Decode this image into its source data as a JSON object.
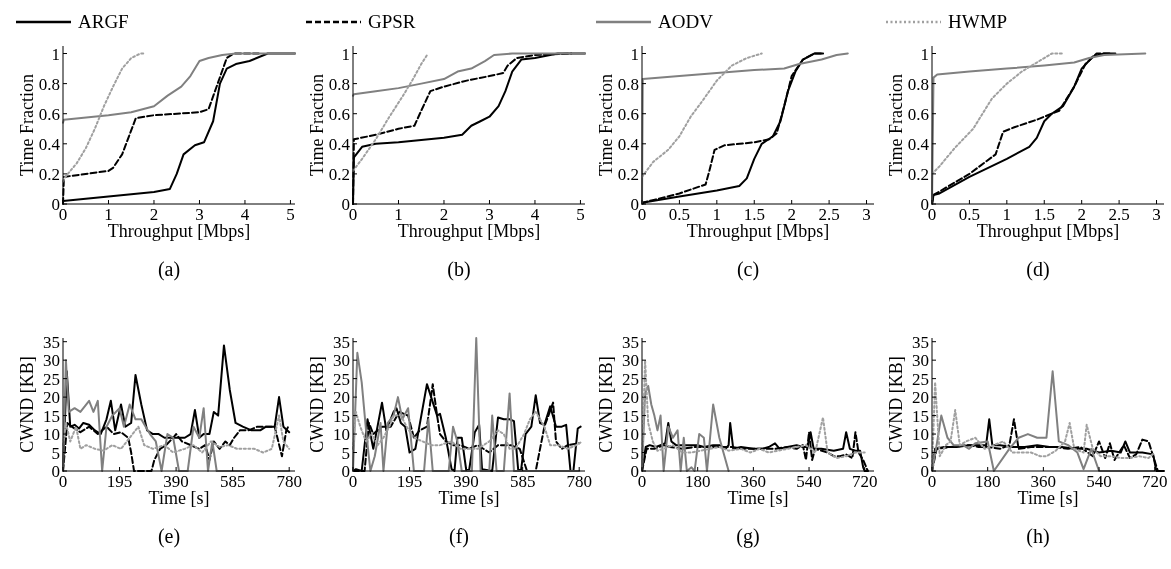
{
  "chart_data": [
    {
      "type": "line",
      "xlabel": "Throughput [Mbps]",
      "ylabel": "Time Fraction",
      "annotations": [
        "(a)"
      ],
      "legend": "top",
      "xlim": [
        0,
        5.1
      ],
      "xticks": [
        0,
        1,
        2,
        3,
        4,
        5
      ],
      "ylim": [
        0,
        1.05
      ],
      "yticks": [
        0,
        0.2,
        0.4,
        0.6,
        0.8,
        1
      ],
      "series": [
        {
          "name": "ARGF",
          "color": "#000000",
          "line_style": "solid",
          "x": [
            0,
            1,
            2,
            2.35,
            2.5,
            2.65,
            2.9,
            3.1,
            3.3,
            3.45,
            3.6,
            3.8,
            4.1,
            4.5,
            5.1
          ],
          "values": [
            0.02,
            0.05,
            0.08,
            0.1,
            0.2,
            0.33,
            0.39,
            0.41,
            0.55,
            0.8,
            0.9,
            0.93,
            0.95,
            1,
            1
          ]
        },
        {
          "name": "GPSR",
          "color": "#000000",
          "line_style": "dashed",
          "x": [
            0,
            0.02,
            1,
            1.1,
            1.3,
            1.45,
            1.6,
            2,
            3,
            3.2,
            3.4,
            3.6,
            3.75,
            4.3
          ],
          "values": [
            0,
            0.18,
            0.22,
            0.24,
            0.33,
            0.45,
            0.57,
            0.59,
            0.61,
            0.63,
            0.8,
            0.97,
            1,
            1
          ]
        },
        {
          "name": "AODV",
          "color": "#808080",
          "line_style": "solid",
          "x": [
            0,
            0.02,
            1,
            1.5,
            2,
            2.3,
            2.6,
            2.8,
            3,
            3.2,
            3.5,
            3.8,
            5.1
          ],
          "values": [
            0.54,
            0.56,
            0.59,
            0.61,
            0.65,
            0.72,
            0.78,
            0.85,
            0.95,
            0.97,
            0.99,
            1,
            1
          ]
        },
        {
          "name": "HWMP",
          "color": "#a0a0a0",
          "line_style": "dotted",
          "x": [
            0,
            0.05,
            0.3,
            0.5,
            0.7,
            0.9,
            1.1,
            1.3,
            1.5,
            1.7,
            1.8
          ],
          "values": [
            0.15,
            0.18,
            0.27,
            0.37,
            0.5,
            0.65,
            0.78,
            0.9,
            0.97,
            1,
            1
          ]
        }
      ]
    },
    {
      "type": "line",
      "xlabel": "Throughput [Mbps]",
      "ylabel": "Time Fraction",
      "annotations": [
        "(b)"
      ],
      "xlim": [
        0,
        5.1
      ],
      "xticks": [
        0,
        1,
        2,
        3,
        4,
        5
      ],
      "ylim": [
        0,
        1.05
      ],
      "yticks": [
        0,
        0.2,
        0.4,
        0.6,
        0.8,
        1
      ],
      "series": [
        {
          "color": "#000000",
          "line_style": "solid",
          "x": [
            0,
            0.02,
            0.2,
            0.5,
            1,
            2,
            2.4,
            2.6,
            2.8,
            3,
            3.2,
            3.35,
            3.5,
            3.7,
            4,
            4.5,
            5.1
          ],
          "values": [
            0,
            0.31,
            0.38,
            0.4,
            0.41,
            0.44,
            0.46,
            0.52,
            0.55,
            0.58,
            0.65,
            0.75,
            0.88,
            0.96,
            0.97,
            1,
            1
          ]
        },
        {
          "color": "#000000",
          "line_style": "dashed",
          "x": [
            0,
            0.02,
            0.5,
            1,
            1.35,
            1.5,
            1.7,
            2,
            2.5,
            3,
            3.3,
            3.4,
            3.6,
            4,
            4.8
          ],
          "values": [
            0,
            0.43,
            0.46,
            0.5,
            0.52,
            0.62,
            0.75,
            0.78,
            0.82,
            0.85,
            0.87,
            0.92,
            0.97,
            0.99,
            1
          ]
        },
        {
          "color": "#808080",
          "line_style": "solid",
          "x": [
            0,
            0.02,
            0.5,
            1,
            1.5,
            2,
            2.3,
            2.6,
            2.9,
            3.1,
            3.5,
            5.1
          ],
          "values": [
            0.72,
            0.73,
            0.75,
            0.77,
            0.8,
            0.83,
            0.88,
            0.9,
            0.95,
            0.99,
            1,
            1
          ]
        },
        {
          "color": "#a0a0a0",
          "line_style": "dotted",
          "x": [
            0,
            0.2,
            0.5,
            0.8,
            1.1,
            1.3,
            1.5,
            1.65
          ],
          "values": [
            0.22,
            0.3,
            0.43,
            0.58,
            0.72,
            0.82,
            0.93,
            1
          ]
        }
      ]
    },
    {
      "type": "line",
      "xlabel": "Throughput [Mbps]",
      "ylabel": "Time Fraction",
      "annotations": [
        "(c)"
      ],
      "xlim": [
        0,
        3.1
      ],
      "xticks": [
        0,
        0.5,
        1,
        1.5,
        2,
        2.5,
        3
      ],
      "ylim": [
        0,
        1.05
      ],
      "yticks": [
        0,
        0.2,
        0.4,
        0.6,
        0.8,
        1
      ],
      "series": [
        {
          "color": "#000000",
          "line_style": "solid",
          "x": [
            0,
            0.02,
            0.5,
            1,
            1.3,
            1.4,
            1.5,
            1.6,
            1.75,
            1.85,
            1.95,
            2.05,
            2.15,
            2.3,
            2.42
          ],
          "values": [
            0,
            0.01,
            0.05,
            0.09,
            0.12,
            0.17,
            0.3,
            0.4,
            0.45,
            0.55,
            0.75,
            0.88,
            0.96,
            1,
            1
          ]
        },
        {
          "color": "#000000",
          "line_style": "dashed",
          "x": [
            0,
            0.02,
            0.5,
            0.85,
            0.9,
            0.97,
            1.1,
            1.5,
            1.7,
            1.8,
            1.9,
            2,
            2.15,
            2.3,
            2.4
          ],
          "values": [
            0,
            0.01,
            0.07,
            0.13,
            0.22,
            0.36,
            0.39,
            0.41,
            0.43,
            0.47,
            0.65,
            0.85,
            0.96,
            1,
            1
          ]
        },
        {
          "color": "#808080",
          "line_style": "solid",
          "x": [
            0,
            0.01,
            0.5,
            1,
            1.5,
            1.9,
            2.1,
            2.4,
            2.6,
            2.75
          ],
          "values": [
            0,
            0.83,
            0.85,
            0.87,
            0.89,
            0.9,
            0.93,
            0.96,
            0.99,
            1
          ]
        },
        {
          "color": "#a0a0a0",
          "line_style": "dotted",
          "x": [
            0,
            0.15,
            0.35,
            0.5,
            0.65,
            0.8,
            1,
            1.2,
            1.4,
            1.6
          ],
          "values": [
            0.18,
            0.28,
            0.36,
            0.45,
            0.58,
            0.68,
            0.82,
            0.92,
            0.97,
            1
          ]
        }
      ]
    },
    {
      "type": "line",
      "xlabel": "Throughput [Mbps]",
      "ylabel": "Time Fraction",
      "annotations": [
        "(d)"
      ],
      "xlim": [
        0,
        3.1
      ],
      "xticks": [
        0,
        0.5,
        1,
        1.5,
        2,
        2.5,
        3
      ],
      "ylim": [
        0,
        1.05
      ],
      "yticks": [
        0,
        0.2,
        0.4,
        0.6,
        0.8,
        1
      ],
      "series": [
        {
          "color": "#000000",
          "line_style": "solid",
          "x": [
            0,
            0.02,
            0.1,
            0.5,
            1,
            1.3,
            1.4,
            1.5,
            1.6,
            1.75,
            1.9,
            2,
            2.15,
            2.3,
            2.45
          ],
          "values": [
            0,
            0.06,
            0.07,
            0.18,
            0.3,
            0.38,
            0.44,
            0.55,
            0.6,
            0.65,
            0.78,
            0.9,
            0.98,
            1,
            1
          ]
        },
        {
          "color": "#000000",
          "line_style": "dashed",
          "x": [
            0,
            0.02,
            0.5,
            0.85,
            0.95,
            1.1,
            1.4,
            1.7,
            1.9,
            2.05,
            2.2,
            2.4
          ],
          "values": [
            0,
            0.06,
            0.2,
            0.33,
            0.48,
            0.51,
            0.56,
            0.62,
            0.78,
            0.93,
            1,
            1
          ]
        },
        {
          "color": "#808080",
          "line_style": "solid",
          "x": [
            0,
            0.02,
            0.07,
            0.5,
            1,
            1.5,
            1.9,
            2.1,
            2.3,
            2.85
          ],
          "values": [
            0,
            0.84,
            0.86,
            0.88,
            0.9,
            0.92,
            0.94,
            0.97,
            0.99,
            1
          ]
        },
        {
          "color": "#a0a0a0",
          "line_style": "dotted",
          "x": [
            0,
            0.1,
            0.3,
            0.55,
            0.8,
            1,
            1.2,
            1.5,
            1.6,
            1.75
          ],
          "values": [
            0.2,
            0.25,
            0.37,
            0.5,
            0.7,
            0.8,
            0.88,
            0.97,
            1,
            1
          ]
        }
      ]
    },
    {
      "type": "line",
      "xlabel": "Time [s]",
      "ylabel": "CWND [KB]",
      "annotations": [
        "(e)"
      ],
      "xlim": [
        0,
        800
      ],
      "xticks": [
        0,
        195,
        390,
        585,
        780
      ],
      "ylim": [
        0,
        36
      ],
      "yticks": [
        0,
        5,
        10,
        15,
        20,
        25,
        30,
        35
      ],
      "series": [
        {
          "color": "#000000",
          "line_style": "solid",
          "x": [
            0,
            13,
            25,
            40,
            55,
            70,
            90,
            110,
            130,
            150,
            165,
            180,
            200,
            215,
            235,
            250,
            270,
            290,
            310,
            330,
            350,
            390,
            420,
            440,
            455,
            470,
            485,
            505,
            520,
            535,
            555,
            575,
            595,
            620,
            650,
            680,
            700,
            730,
            745,
            760,
            780
          ],
          "values": [
            0,
            27,
            12,
            12.5,
            11.5,
            13,
            12.5,
            11,
            10,
            14,
            19,
            11,
            18,
            12,
            13,
            26,
            18,
            11,
            10,
            10,
            9,
            9,
            9,
            10,
            16.5,
            9,
            10,
            10,
            16,
            15,
            34,
            22,
            13,
            12,
            11,
            11,
            12,
            12,
            20,
            12,
            10.5
          ]
        },
        {
          "color": "#000000",
          "line_style": "dashed",
          "x": [
            0,
            15,
            30,
            60,
            90,
            120,
            150,
            175,
            200,
            225,
            235,
            245,
            290,
            305,
            315,
            335,
            355,
            380,
            390,
            410,
            440,
            470,
            490,
            505,
            520,
            540,
            560,
            575,
            590,
            610,
            640,
            670,
            700,
            730,
            755,
            770,
            780
          ],
          "values": [
            0,
            13,
            12,
            10.5,
            12,
            10,
            12,
            10,
            10.5,
            9,
            5,
            0,
            0,
            0,
            3,
            6,
            7,
            9,
            10,
            8,
            7,
            6,
            7,
            3,
            8,
            6,
            8,
            7,
            9,
            11,
            11,
            12,
            12,
            12,
            4,
            11,
            12.5
          ]
        },
        {
          "color": "#808080",
          "line_style": "solid",
          "x": [
            0,
            10,
            20,
            40,
            60,
            90,
            105,
            120,
            135,
            150,
            170,
            195,
            210,
            230,
            250,
            270,
            285,
            300,
            320,
            340,
            360,
            380,
            400,
            430,
            450,
            470,
            485,
            500,
            515,
            530,
            560,
            780
          ],
          "values": [
            0,
            30,
            16,
            17,
            16,
            19,
            16,
            19,
            0,
            12,
            15,
            17,
            12,
            18,
            14,
            14,
            12,
            10,
            8,
            0,
            10,
            9,
            0,
            0,
            12,
            9,
            17,
            0,
            8,
            0,
            0,
            0
          ]
        },
        {
          "color": "#a0a0a0",
          "line_style": "dotted",
          "x": [
            0,
            10,
            25,
            45,
            60,
            80,
            110,
            140,
            170,
            200,
            230,
            260,
            280,
            310,
            350,
            380,
            420,
            450,
            480,
            510,
            540,
            570,
            600,
            630,
            660,
            690,
            720,
            745,
            760,
            780
          ],
          "values": [
            7,
            13,
            8,
            12,
            6,
            7,
            6,
            5.5,
            7,
            6,
            9,
            12,
            7,
            6,
            7,
            5,
            6,
            7,
            5,
            8,
            6.5,
            7,
            6,
            6,
            6,
            5,
            6,
            15,
            8,
            6
          ]
        }
      ]
    },
    {
      "type": "line",
      "xlabel": "Time [s]",
      "ylabel": "CWND [KB]",
      "annotations": [
        "(f)"
      ],
      "xlim": [
        0,
        800
      ],
      "xticks": [
        0,
        195,
        390,
        585,
        780
      ],
      "ylim": [
        0,
        36
      ],
      "yticks": [
        0,
        5,
        10,
        15,
        20,
        25,
        30,
        35
      ],
      "series": [
        {
          "color": "#000000",
          "line_style": "solid",
          "x": [
            0,
            10,
            30,
            50,
            70,
            100,
            115,
            140,
            150,
            165,
            180,
            195,
            215,
            255,
            290,
            300,
            320,
            340,
            350,
            360,
            375,
            390,
            400,
            420,
            435,
            445,
            480,
            500,
            520,
            540,
            555,
            570,
            580,
            595,
            615,
            630,
            645,
            660,
            680,
            700,
            720,
            735,
            750,
            760,
            775,
            785
          ],
          "values": [
            0,
            0.5,
            0,
            14,
            6,
            18.5,
            11,
            16,
            17,
            13,
            12,
            5,
            6,
            23.5,
            15,
            15.5,
            9,
            0.5,
            0,
            9,
            9,
            0.5,
            0,
            10.5,
            12.5,
            0.5,
            0,
            14.5,
            14,
            14,
            13.5,
            0,
            0.5,
            10,
            12,
            20.5,
            13,
            12.5,
            17.5,
            12,
            12,
            12.5,
            0,
            0,
            11.5,
            12
          ]
        },
        {
          "color": "#000000",
          "line_style": "dashed",
          "x": [
            0,
            40,
            55,
            70,
            100,
            130,
            160,
            190,
            210,
            230,
            255,
            275,
            290,
            300,
            320,
            345,
            370,
            400,
            430,
            470,
            500,
            520,
            545,
            575,
            600,
            630,
            660,
            690,
            700,
            720,
            740,
            780
          ],
          "values": [
            0,
            0,
            13,
            10,
            12,
            12,
            16,
            15,
            9,
            11,
            12,
            23.5,
            15,
            10,
            8,
            7,
            7,
            6,
            7,
            5,
            7,
            7,
            7,
            6,
            0,
            0,
            12,
            18.5,
            8,
            6,
            7,
            7.5
          ]
        },
        {
          "color": "#808080",
          "line_style": "solid",
          "x": [
            0,
            15,
            30,
            45,
            60,
            75,
            95,
            105,
            120,
            140,
            155,
            170,
            190,
            210,
            245,
            260,
            275,
            300,
            330,
            345,
            360,
            375,
            410,
            425,
            440,
            470,
            480,
            495,
            520,
            540,
            555,
            590,
            780
          ],
          "values": [
            0,
            32,
            24,
            11,
            0,
            4,
            13,
            0,
            13,
            15,
            20,
            14,
            17,
            0,
            0,
            14,
            0,
            0,
            0,
            12,
            8,
            0,
            0,
            36,
            0,
            0,
            15,
            0,
            0,
            21,
            0,
            0,
            0
          ]
        },
        {
          "color": "#a0a0a0",
          "line_style": "dotted",
          "x": [
            0,
            10,
            25,
            45,
            65,
            85,
            105,
            125,
            140,
            165,
            185,
            210,
            240,
            270,
            300,
            340,
            370,
            400,
            430,
            470,
            500,
            520,
            540,
            560,
            590,
            610,
            630,
            660,
            680,
            710,
            740,
            770,
            790
          ],
          "values": [
            6,
            16,
            12,
            8,
            10,
            7,
            9,
            12,
            15,
            15,
            12,
            9,
            8,
            7,
            7,
            8,
            6,
            6,
            6,
            8,
            11,
            10,
            6,
            6,
            10,
            14,
            16,
            12,
            7,
            7,
            6,
            7,
            8
          ]
        }
      ]
    },
    {
      "type": "line",
      "xlabel": "Time [s]",
      "ylabel": "CWND [KB]",
      "annotations": [
        "(g)"
      ],
      "xlim": [
        0,
        750
      ],
      "xticks": [
        0,
        180,
        360,
        540,
        720
      ],
      "ylim": [
        0,
        36
      ],
      "yticks": [
        0,
        5,
        10,
        15,
        20,
        25,
        30,
        35
      ],
      "series": [
        {
          "color": "#000000",
          "line_style": "solid",
          "x": [
            0,
            12,
            25,
            45,
            60,
            75,
            85,
            95,
            110,
            150,
            180,
            200,
            230,
            250,
            270,
            280,
            285,
            295,
            320,
            360,
            390,
            410,
            430,
            445,
            470,
            500,
            520,
            535,
            545,
            555,
            580,
            620,
            650,
            660,
            672,
            690,
            705,
            715,
            720,
            730
          ],
          "values": [
            0,
            6.5,
            7,
            6.5,
            7,
            7.5,
            13,
            8,
            7,
            7,
            7,
            6.5,
            7,
            7,
            6,
            7,
            13,
            6,
            6.5,
            6,
            6,
            6.5,
            7.5,
            6,
            6.5,
            7,
            6.5,
            6.5,
            10.5,
            6,
            6,
            5.5,
            6,
            10.5,
            6,
            5.5,
            5.5,
            1,
            0,
            0
          ]
        },
        {
          "color": "#000000",
          "line_style": "dashed",
          "x": [
            0,
            15,
            40,
            70,
            90,
            130,
            170,
            210,
            250,
            290,
            330,
            370,
            400,
            430,
            470,
            500,
            520,
            530,
            540,
            550,
            560,
            600,
            620,
            640,
            660,
            680,
            690,
            700,
            715,
            730
          ],
          "values": [
            0,
            6,
            6,
            7,
            6.5,
            6,
            6.5,
            6.5,
            6.5,
            6.5,
            6,
            6,
            6,
            6,
            6.5,
            6,
            7,
            3,
            10.5,
            3,
            6,
            5,
            4,
            4,
            4.5,
            3.5,
            10.5,
            5,
            3,
            0
          ]
        },
        {
          "color": "#808080",
          "line_style": "solid",
          "x": [
            0,
            10,
            20,
            30,
            40,
            50,
            60,
            70,
            85,
            100,
            115,
            125,
            135,
            145,
            160,
            170,
            185,
            200,
            210,
            230,
            250,
            280
          ],
          "values": [
            0,
            21,
            23,
            18,
            15,
            11,
            15,
            0,
            12,
            9,
            11,
            0,
            9,
            0,
            1,
            0,
            10,
            9,
            0,
            18,
            9,
            0
          ]
        },
        {
          "color": "#a0a0a0",
          "line_style": "dotted",
          "x": [
            0,
            10,
            20,
            35,
            50,
            70,
            100,
            130,
            160,
            190,
            220,
            250,
            280,
            320,
            350,
            380,
            410,
            440,
            470,
            500,
            530,
            560,
            585,
            600,
            630,
            660,
            690,
            720
          ],
          "values": [
            1,
            30,
            13,
            8,
            5.5,
            6,
            7,
            5,
            5,
            5.5,
            6,
            6.5,
            5.5,
            6,
            5,
            6,
            5,
            5.5,
            6,
            6.5,
            7,
            5,
            14.5,
            5,
            3.5,
            4,
            5,
            5
          ]
        }
      ]
    },
    {
      "type": "line",
      "xlabel": "Time [s]",
      "ylabel": "CWND [KB]",
      "annotations": [
        "(h)"
      ],
      "xlim": [
        0,
        750
      ],
      "xticks": [
        0,
        180,
        360,
        540,
        720
      ],
      "ylim": [
        0,
        36
      ],
      "yticks": [
        0,
        5,
        10,
        15,
        20,
        25,
        30,
        35
      ],
      "series": [
        {
          "color": "#000000",
          "line_style": "solid",
          "x": [
            0,
            10,
            40,
            80,
            120,
            160,
            175,
            185,
            195,
            220,
            260,
            300,
            340,
            380,
            420,
            460,
            500,
            540,
            580,
            610,
            625,
            640,
            680,
            715,
            725,
            750
          ],
          "values": [
            0,
            6,
            6.5,
            6.5,
            7,
            7,
            7,
            14,
            7,
            7,
            6.5,
            6.5,
            7,
            6.5,
            6.5,
            6,
            6,
            5,
            5.5,
            5,
            8,
            5,
            5,
            4.5,
            0,
            0
          ]
        },
        {
          "color": "#000000",
          "line_style": "dashed",
          "x": [
            0,
            15,
            60,
            120,
            150,
            180,
            220,
            250,
            265,
            280,
            320,
            360,
            400,
            440,
            480,
            520,
            540,
            560,
            575,
            590,
            620,
            640,
            660,
            680,
            700,
            715,
            730
          ],
          "values": [
            0,
            6,
            6.5,
            7,
            6.5,
            6.5,
            6,
            7,
            14,
            6,
            6.5,
            6.5,
            6.5,
            6,
            6.5,
            4,
            8,
            3.5,
            7.5,
            3,
            7,
            3.5,
            4.5,
            8.5,
            8,
            4,
            0
          ]
        },
        {
          "color": "#808080",
          "line_style": "solid",
          "x": [
            0,
            15,
            30,
            50,
            70,
            100,
            120,
            140,
            180,
            200,
            250,
            280,
            310,
            340,
            370,
            390,
            410,
            440,
            470,
            490,
            515,
            540,
            720
          ],
          "values": [
            0,
            7,
            15,
            9,
            7,
            7,
            6,
            7.5,
            8,
            0,
            6,
            9,
            10,
            9,
            9,
            27,
            8,
            7,
            5,
            0.5,
            6,
            0,
            0
          ]
        },
        {
          "color": "#a0a0a0",
          "line_style": "dotted",
          "x": [
            0,
            10,
            25,
            45,
            60,
            75,
            90,
            110,
            140,
            170,
            200,
            230,
            260,
            290,
            320,
            350,
            370,
            400,
            430,
            445,
            460,
            490,
            500,
            520,
            545,
            580,
            610,
            640,
            670,
            700,
            720
          ],
          "values": [
            0,
            24,
            4,
            7,
            8,
            16.5,
            7,
            8,
            9,
            6,
            7,
            8,
            5,
            5,
            5,
            4,
            4,
            5.5,
            8,
            13,
            6,
            5,
            12.5,
            6,
            4,
            4,
            3.5,
            3.5,
            4,
            3.5,
            5
          ]
        }
      ]
    }
  ]
}
